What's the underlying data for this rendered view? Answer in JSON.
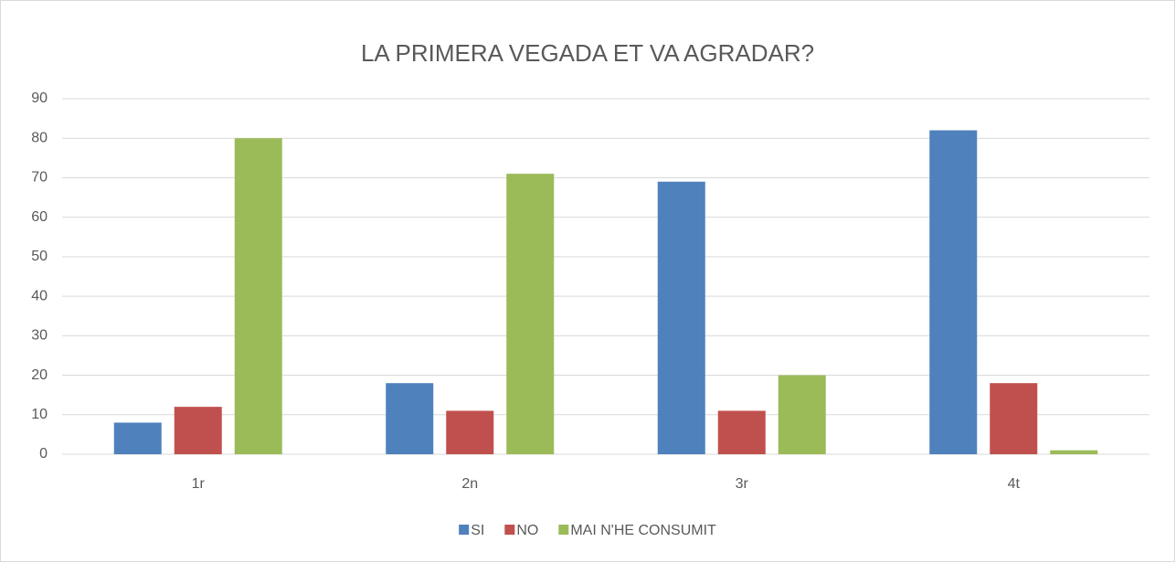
{
  "chart_data": {
    "type": "bar",
    "title": "LA PRIMERA VEGADA ET VA AGRADAR?",
    "categories": [
      "1r",
      "2n",
      "3r",
      "4t"
    ],
    "series": [
      {
        "name": "SI",
        "color": "#4f81bd",
        "values": [
          8,
          18,
          69,
          82
        ]
      },
      {
        "name": "NO",
        "color": "#c0504d",
        "values": [
          12,
          11,
          11,
          18
        ]
      },
      {
        "name": "MAI N'HE CONSUMIT",
        "color": "#9bbb59",
        "values": [
          80,
          71,
          20,
          1
        ]
      }
    ],
    "ylim": [
      0,
      90
    ],
    "yticks": [
      0,
      10,
      20,
      30,
      40,
      50,
      60,
      70,
      80,
      90
    ],
    "grid": true,
    "legend": "bottom"
  }
}
